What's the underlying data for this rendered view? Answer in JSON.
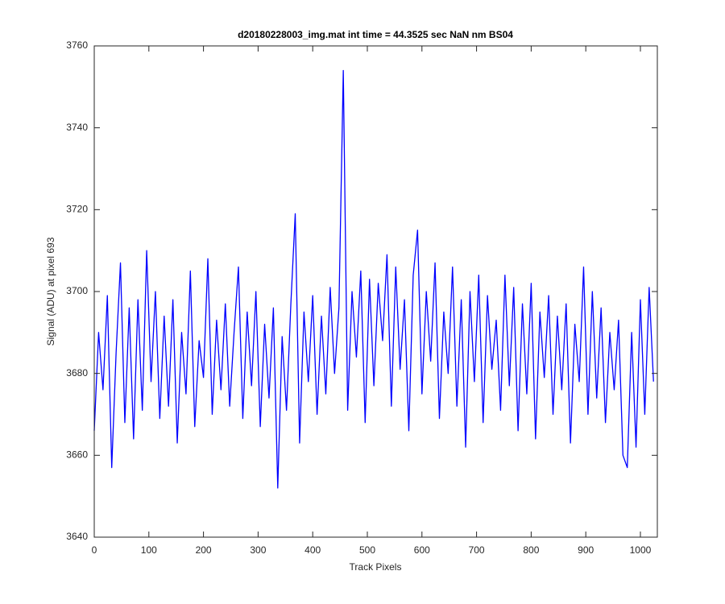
{
  "chart_data": {
    "type": "line",
    "title": "d20180228003_img.mat int time = 44.3525 sec  NaN nm BS04",
    "x_label": "Track Pixels",
    "y_label": "Signal (ADU) at pixel 693",
    "x": [
      0,
      8,
      16,
      24,
      32,
      40,
      48,
      56,
      64,
      72,
      80,
      88,
      96,
      104,
      112,
      120,
      128,
      136,
      144,
      152,
      160,
      168,
      176,
      184,
      192,
      200,
      208,
      216,
      224,
      232,
      240,
      248,
      256,
      264,
      272,
      280,
      288,
      296,
      304,
      312,
      320,
      328,
      336,
      344,
      352,
      360,
      368,
      376,
      384,
      392,
      400,
      408,
      416,
      424,
      432,
      440,
      448,
      456,
      464,
      472,
      480,
      488,
      496,
      504,
      512,
      520,
      528,
      536,
      544,
      552,
      560,
      568,
      576,
      584,
      592,
      600,
      608,
      616,
      624,
      632,
      640,
      648,
      656,
      664,
      672,
      680,
      688,
      696,
      704,
      712,
      720,
      728,
      736,
      744,
      752,
      760,
      768,
      776,
      784,
      792,
      800,
      808,
      816,
      824,
      832,
      840,
      848,
      856,
      864,
      872,
      880,
      888,
      896,
      904,
      912,
      920,
      928,
      936,
      944,
      952,
      960,
      968,
      976,
      984,
      992,
      1000,
      1008,
      1016,
      1024
    ],
    "series": [
      {
        "color": "#0000ff",
        "values": [
          3666,
          3690,
          3676,
          3699,
          3657,
          3685,
          3707,
          3668,
          3696,
          3664,
          3698,
          3671,
          3710,
          3678,
          3700,
          3669,
          3694,
          3672,
          3698,
          3663,
          3690,
          3675,
          3705,
          3667,
          3688,
          3679,
          3708,
          3670,
          3693,
          3676,
          3697,
          3672,
          3690,
          3706,
          3669,
          3695,
          3677,
          3700,
          3667,
          3692,
          3674,
          3696,
          3652,
          3689,
          3671,
          3697,
          3719,
          3663,
          3695,
          3678,
          3699,
          3670,
          3694,
          3675,
          3701,
          3680,
          3696,
          3754,
          3671,
          3700,
          3684,
          3705,
          3668,
          3703,
          3677,
          3702,
          3688,
          3709,
          3672,
          3706,
          3681,
          3698,
          3666,
          3704,
          3715,
          3675,
          3700,
          3683,
          3707,
          3669,
          3695,
          3680,
          3706,
          3672,
          3698,
          3662,
          3700,
          3678,
          3704,
          3668,
          3699,
          3681,
          3693,
          3671,
          3704,
          3677,
          3701,
          3666,
          3697,
          3675,
          3702,
          3664,
          3695,
          3679,
          3699,
          3670,
          3694,
          3676,
          3697,
          3663,
          3692,
          3678,
          3706,
          3670,
          3700,
          3674,
          3696,
          3668,
          3690,
          3676,
          3693,
          3660,
          3657,
          3690,
          3662,
          3698,
          3670,
          3701,
          3678
        ]
      }
    ],
    "xlim": [
      0,
      1031
    ],
    "ylim": [
      3640,
      3760
    ],
    "xticks": [
      0,
      100,
      200,
      300,
      400,
      500,
      600,
      700,
      800,
      900,
      1000
    ],
    "yticks": [
      3640,
      3660,
      3680,
      3700,
      3720,
      3740,
      3760
    ]
  }
}
